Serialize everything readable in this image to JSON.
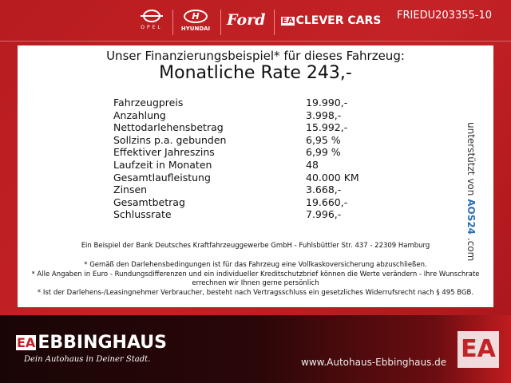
{
  "header": {
    "brands": [
      "OPEL",
      "HYUNDAI",
      "Ford",
      "CLEVER CARS"
    ],
    "ea_mark": "EA",
    "reference": "FRIEDU203355-10"
  },
  "panel": {
    "title": "Unser Finanzierungsbeispiel* für dieses Fahrzeug:",
    "rate": "Monatliche Rate 243,-",
    "rows": [
      {
        "label": "Fahrzeugpreis",
        "value": "19.990,-"
      },
      {
        "label": "Anzahlung",
        "value": "3.998,-"
      },
      {
        "label": "Nettodarlehensbetrag",
        "value": "15.992,-"
      },
      {
        "label": "Sollzins p.a. gebunden",
        "value": "6,95 %"
      },
      {
        "label": "Effektiver Jahreszins",
        "value": "6,99 %"
      },
      {
        "label": "Laufzeit in Monaten",
        "value": "48"
      },
      {
        "label": "Gesamtlaufleistung",
        "value": "40.000 KM"
      },
      {
        "label": "Zinsen",
        "value": "3.668,-"
      },
      {
        "label": "Gesamtbetrag",
        "value": "19.660,-"
      },
      {
        "label": "Schlussrate",
        "value": "7.996,-"
      }
    ],
    "supported_by": "unterstützt von",
    "aos": "AOS24",
    ".com": ".com",
    "bank": "Ein Beispiel der Bank Deutsches Kraftfahrzeuggewerbe GmbH - Fuhlsbüttler Str. 437 - 22309 Hamburg",
    "note1": "* Gemäß den Darlehensbedingungen ist für das Fahrzeug eine Vollkaskoversicherung abzuschließen.",
    "note2": "* Alle Angaben in Euro - Rundungsdifferenzen und ein individueller Kreditschutzbrief können die Werte verändern - Ihre Wunschrate errechnen wir Ihnen gerne persönlich",
    "note3": "* Ist der Darlehens-/Leasingnehmer Verbraucher, besteht nach Vertragsschluss ein gesetzliches Widerrufsrecht nach § 495 BGB."
  },
  "footer": {
    "ea_mark": "EA",
    "name": "EBBINGHAUS",
    "slogan": "Dein Autohaus in Deiner Stadt.",
    "url": "www.Autohaus-Ebbinghaus.de"
  }
}
